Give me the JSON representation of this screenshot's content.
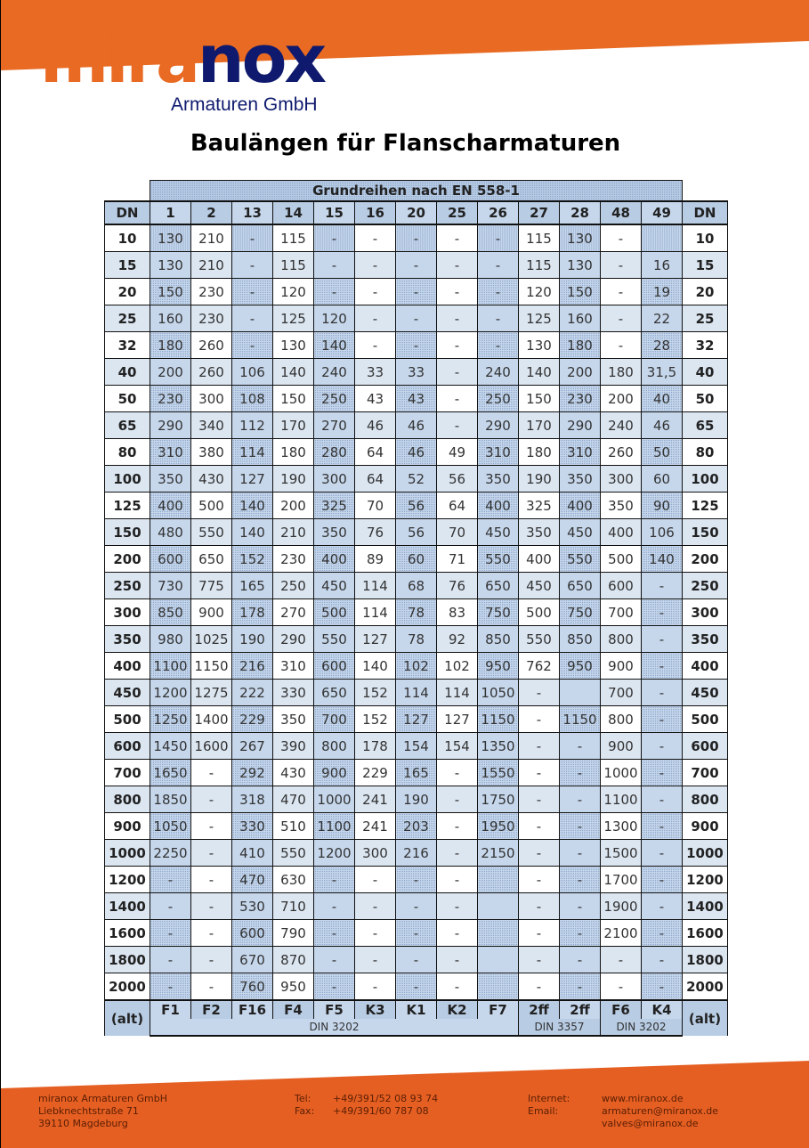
{
  "colors": {
    "orange": "#e86a23",
    "navy": "#0f1a6e",
    "header_blue": "#b8cce4",
    "row_blue": "#dce6f1"
  },
  "logo": {
    "part1": "mira",
    "part2": "nox",
    "subtitle": "Armaturen GmbH"
  },
  "title": "Baulängen für Flanscharmaturen",
  "table": {
    "group_header": "Grundreihen nach EN 558-1",
    "dn_label": "DN",
    "columns": [
      "1",
      "2",
      "13",
      "14",
      "15",
      "16",
      "20",
      "25",
      "26",
      "27",
      "28",
      "48",
      "49"
    ],
    "rows": [
      {
        "dn": "10",
        "values": [
          "130",
          "210",
          "-",
          "115",
          "-",
          "-",
          "-",
          "-",
          "-",
          "115",
          "130",
          "-",
          ""
        ]
      },
      {
        "dn": "15",
        "values": [
          "130",
          "210",
          "-",
          "115",
          "-",
          "-",
          "-",
          "-",
          "-",
          "115",
          "130",
          "-",
          "16"
        ]
      },
      {
        "dn": "20",
        "values": [
          "150",
          "230",
          "-",
          "120",
          "-",
          "-",
          "-",
          "-",
          "-",
          "120",
          "150",
          "-",
          "19"
        ]
      },
      {
        "dn": "25",
        "values": [
          "160",
          "230",
          "-",
          "125",
          "120",
          "-",
          "-",
          "-",
          "-",
          "125",
          "160",
          "-",
          "22"
        ]
      },
      {
        "dn": "32",
        "values": [
          "180",
          "260",
          "-",
          "130",
          "140",
          "-",
          "-",
          "-",
          "-",
          "130",
          "180",
          "-",
          "28"
        ]
      },
      {
        "dn": "40",
        "values": [
          "200",
          "260",
          "106",
          "140",
          "240",
          "33",
          "33",
          "-",
          "240",
          "140",
          "200",
          "180",
          "31,5"
        ]
      },
      {
        "dn": "50",
        "values": [
          "230",
          "300",
          "108",
          "150",
          "250",
          "43",
          "43",
          "-",
          "250",
          "150",
          "230",
          "200",
          "40"
        ]
      },
      {
        "dn": "65",
        "values": [
          "290",
          "340",
          "112",
          "170",
          "270",
          "46",
          "46",
          "-",
          "290",
          "170",
          "290",
          "240",
          "46"
        ]
      },
      {
        "dn": "80",
        "values": [
          "310",
          "380",
          "114",
          "180",
          "280",
          "64",
          "46",
          "49",
          "310",
          "180",
          "310",
          "260",
          "50"
        ]
      },
      {
        "dn": "100",
        "values": [
          "350",
          "430",
          "127",
          "190",
          "300",
          "64",
          "52",
          "56",
          "350",
          "190",
          "350",
          "300",
          "60"
        ]
      },
      {
        "dn": "125",
        "values": [
          "400",
          "500",
          "140",
          "200",
          "325",
          "70",
          "56",
          "64",
          "400",
          "325",
          "400",
          "350",
          "90"
        ]
      },
      {
        "dn": "150",
        "values": [
          "480",
          "550",
          "140",
          "210",
          "350",
          "76",
          "56",
          "70",
          "450",
          "350",
          "450",
          "400",
          "106"
        ]
      },
      {
        "dn": "200",
        "values": [
          "600",
          "650",
          "152",
          "230",
          "400",
          "89",
          "60",
          "71",
          "550",
          "400",
          "550",
          "500",
          "140"
        ]
      },
      {
        "dn": "250",
        "values": [
          "730",
          "775",
          "165",
          "250",
          "450",
          "114",
          "68",
          "76",
          "650",
          "450",
          "650",
          "600",
          "-"
        ]
      },
      {
        "dn": "300",
        "values": [
          "850",
          "900",
          "178",
          "270",
          "500",
          "114",
          "78",
          "83",
          "750",
          "500",
          "750",
          "700",
          "-"
        ]
      },
      {
        "dn": "350",
        "values": [
          "980",
          "1025",
          "190",
          "290",
          "550",
          "127",
          "78",
          "92",
          "850",
          "550",
          "850",
          "800",
          "-"
        ]
      },
      {
        "dn": "400",
        "values": [
          "1100",
          "1150",
          "216",
          "310",
          "600",
          "140",
          "102",
          "102",
          "950",
          "762",
          "950",
          "900",
          "-"
        ]
      },
      {
        "dn": "450",
        "values": [
          "1200",
          "1275",
          "222",
          "330",
          "650",
          "152",
          "114",
          "114",
          "1050",
          "-",
          "",
          "700",
          "-"
        ]
      },
      {
        "dn": "500",
        "values": [
          "1250",
          "1400",
          "229",
          "350",
          "700",
          "152",
          "127",
          "127",
          "1150",
          "-",
          "1150",
          "800",
          "-"
        ]
      },
      {
        "dn": "600",
        "values": [
          "1450",
          "1600",
          "267",
          "390",
          "800",
          "178",
          "154",
          "154",
          "1350",
          "-",
          "-",
          "900",
          "-"
        ]
      },
      {
        "dn": "700",
        "values": [
          "1650",
          "-",
          "292",
          "430",
          "900",
          "229",
          "165",
          "-",
          "1550",
          "-",
          "-",
          "1000",
          "-"
        ]
      },
      {
        "dn": "800",
        "values": [
          "1850",
          "-",
          "318",
          "470",
          "1000",
          "241",
          "190",
          "-",
          "1750",
          "-",
          "-",
          "1100",
          "-"
        ]
      },
      {
        "dn": "900",
        "values": [
          "1050",
          "-",
          "330",
          "510",
          "1100",
          "241",
          "203",
          "-",
          "1950",
          "-",
          "-",
          "1300",
          "-"
        ]
      },
      {
        "dn": "1000",
        "values": [
          "2250",
          "-",
          "410",
          "550",
          "1200",
          "300",
          "216",
          "-",
          "2150",
          "-",
          "-",
          "1500",
          "-"
        ]
      },
      {
        "dn": "1200",
        "values": [
          "-",
          "-",
          "470",
          "630",
          "-",
          "-",
          "-",
          "-",
          "",
          "-",
          "-",
          "1700",
          "-"
        ]
      },
      {
        "dn": "1400",
        "values": [
          "-",
          "-",
          "530",
          "710",
          "-",
          "-",
          "-",
          "-",
          "",
          "-",
          "-",
          "1900",
          "-"
        ]
      },
      {
        "dn": "1600",
        "values": [
          "-",
          "-",
          "600",
          "790",
          "-",
          "-",
          "-",
          "-",
          "",
          "-",
          "-",
          "2100",
          "-"
        ]
      },
      {
        "dn": "1800",
        "values": [
          "-",
          "-",
          "670",
          "870",
          "-",
          "-",
          "-",
          "-",
          "",
          "-",
          "-",
          "-",
          "-"
        ]
      },
      {
        "dn": "2000",
        "values": [
          "-",
          "-",
          "760",
          "950",
          "-",
          "-",
          "-",
          "-",
          "",
          "-",
          "-",
          "-",
          "-"
        ]
      }
    ],
    "alt_label": "(alt)",
    "alt_codes": [
      "F1",
      "F2",
      "F16",
      "F4",
      "F5",
      "K3",
      "K1",
      "K2",
      "F7",
      "2ff",
      "2ff",
      "F6",
      "K4"
    ],
    "standards": [
      {
        "label": "DIN 3202",
        "span": 9
      },
      {
        "label": "DIN 3357",
        "span": 2
      },
      {
        "label": "DIN 3202",
        "span": 2
      }
    ]
  },
  "footer": {
    "company": "miranox Armaturen GmbH",
    "street": "Liebknechtstraße 71",
    "city": "39110 Magdeburg",
    "tel_label": "Tel:",
    "tel": "+49/391/52 08 93 74",
    "fax_label": "Fax:",
    "fax": "+49/391/60 787 08",
    "internet_label": "Internet:",
    "internet": "www.miranox.de",
    "email_label": "Email:",
    "email1": "armaturen@miranox.de",
    "email2": "valves@miranox.de"
  }
}
